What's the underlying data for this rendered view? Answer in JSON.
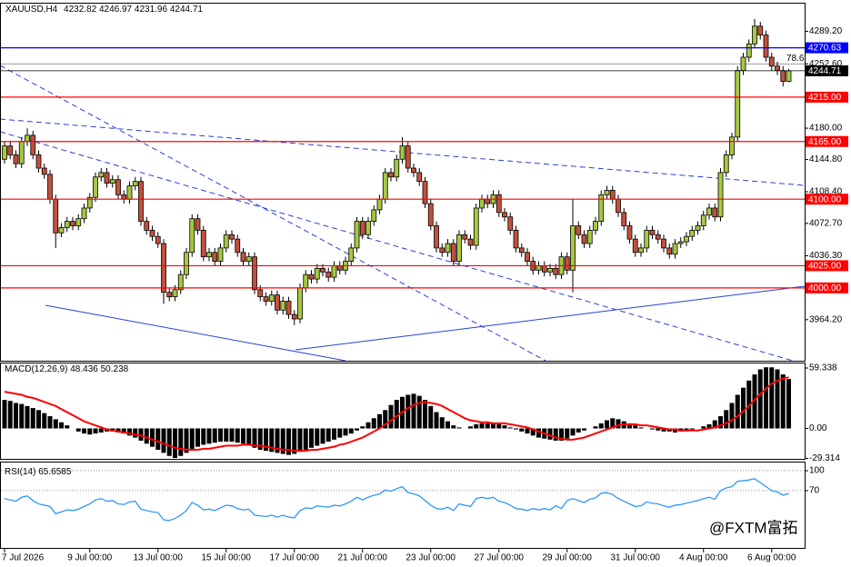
{
  "chart_data": [
    {
      "type": "candlestick",
      "title": "XAUUSD,H4",
      "header_values": [
        4232.82,
        4246.97,
        4231.96,
        4244.71
      ],
      "open": [
        4145,
        4160,
        4150,
        4140,
        4165,
        4172,
        4150,
        4135,
        4128,
        4100,
        4062,
        4068,
        4075,
        4070,
        4078,
        4090,
        4102,
        4125,
        4130,
        4118,
        4122,
        4105,
        4100,
        4115,
        4120,
        4075,
        4065,
        4058,
        4050,
        3995,
        3990,
        3998,
        4015,
        4040,
        4078,
        4065,
        4035,
        4040,
        4030,
        4045,
        4060,
        4055,
        4040,
        4030,
        4035,
        3998,
        3990,
        3985,
        3992,
        3975,
        3985,
        3970,
        3965,
        4000,
        4015,
        4010,
        4022,
        4018,
        4012,
        4025,
        4020,
        4030,
        4045,
        4075,
        4060,
        4075,
        4088,
        4100,
        4130,
        4125,
        4145,
        4160,
        4135,
        4130,
        4120,
        4095,
        4070,
        4045,
        4040,
        4050,
        4030,
        4060,
        4055,
        4048,
        4090,
        4100,
        4095,
        4105,
        4085,
        4080,
        4065,
        4045,
        4040,
        4030,
        4020,
        4025,
        4018,
        4022,
        4015,
        4035,
        4020,
        4070,
        4060,
        4050,
        4065,
        4075,
        4105,
        4110,
        4100,
        4085,
        4070,
        4055,
        4040,
        4045,
        4065,
        4060,
        4055,
        4045,
        4038,
        4050,
        4052,
        4058,
        4065,
        4070,
        4082,
        4090,
        4080,
        4130,
        4150,
        4170,
        4245,
        4260,
        4275,
        4295,
        4285,
        4260,
        4250,
        4245,
        4232.82
      ],
      "high": [
        4165,
        4165,
        4155,
        4170,
        4180,
        4177,
        4155,
        4140,
        4133,
        4105,
        4073,
        4080,
        4080,
        4083,
        4095,
        4107,
        4130,
        4135,
        4135,
        4127,
        4127,
        4110,
        4120,
        4125,
        4125,
        4080,
        4070,
        4063,
        4055,
        4000,
        4003,
        4020,
        4045,
        4083,
        4083,
        4070,
        4045,
        4045,
        4050,
        4065,
        4065,
        4060,
        4045,
        4040,
        4040,
        4003,
        3995,
        3997,
        3997,
        3990,
        3990,
        3975,
        4005,
        4020,
        4020,
        4027,
        4027,
        4023,
        4030,
        4030,
        4035,
        4050,
        4080,
        4080,
        4080,
        4093,
        4105,
        4135,
        4135,
        4150,
        4170,
        4165,
        4140,
        4135,
        4125,
        4100,
        4075,
        4050,
        4055,
        4055,
        4065,
        4065,
        4060,
        4095,
        4105,
        4105,
        4110,
        4110,
        4090,
        4085,
        4070,
        4050,
        4045,
        4035,
        4030,
        4030,
        4027,
        4027,
        4040,
        4040,
        4100,
        4075,
        4065,
        4070,
        4080,
        4110,
        4115,
        4115,
        4105,
        4090,
        4075,
        4060,
        4050,
        4070,
        4070,
        4065,
        4060,
        4050,
        4055,
        4057,
        4063,
        4070,
        4075,
        4087,
        4095,
        4095,
        4135,
        4155,
        4175,
        4250,
        4265,
        4280,
        4303,
        4300,
        4290,
        4265,
        4255,
        4250,
        4246.97
      ],
      "low": [
        4140,
        4145,
        4135,
        4135,
        4160,
        4145,
        4130,
        4123,
        4095,
        4045,
        4057,
        4063,
        4065,
        4065,
        4073,
        4085,
        4097,
        4120,
        4113,
        4113,
        4100,
        4095,
        4095,
        4110,
        4070,
        4060,
        4053,
        4045,
        3982,
        3985,
        3985,
        3993,
        4010,
        4035,
        4060,
        4030,
        4030,
        4025,
        4025,
        4040,
        4050,
        4035,
        4025,
        4025,
        3993,
        3985,
        3980,
        3980,
        3970,
        3970,
        3965,
        3958,
        3960,
        3995,
        4005,
        4005,
        4013,
        4007,
        4007,
        4015,
        4015,
        4025,
        4040,
        4055,
        4055,
        4070,
        4083,
        4095,
        4120,
        4120,
        4140,
        4130,
        4125,
        4115,
        4090,
        4065,
        4040,
        4035,
        4035,
        4025,
        4025,
        4050,
        4043,
        4043,
        4085,
        4090,
        4090,
        4080,
        4075,
        4060,
        4040,
        4035,
        4025,
        4015,
        4015,
        4013,
        4013,
        4010,
        4010,
        4015,
        3995,
        4055,
        4045,
        4045,
        4060,
        4070,
        4100,
        4095,
        4080,
        4065,
        4050,
        4035,
        4035,
        4040,
        4055,
        4050,
        4040,
        4033,
        4033,
        4045,
        4047,
        4053,
        4060,
        4065,
        4077,
        4075,
        4075,
        4125,
        4145,
        4165,
        4240,
        4255,
        4270,
        4280,
        4255,
        4245,
        4240,
        4227,
        4231.96
      ],
      "close": [
        4160,
        4150,
        4140,
        4165,
        4172,
        4150,
        4135,
        4128,
        4100,
        4062,
        4068,
        4075,
        4070,
        4078,
        4090,
        4102,
        4125,
        4130,
        4118,
        4122,
        4105,
        4100,
        4115,
        4120,
        4075,
        4065,
        4058,
        4050,
        3995,
        3990,
        3998,
        4015,
        4040,
        4078,
        4065,
        4035,
        4040,
        4030,
        4045,
        4060,
        4055,
        4040,
        4030,
        4035,
        3998,
        3990,
        3985,
        3992,
        3975,
        3985,
        3970,
        3965,
        4000,
        4015,
        4010,
        4022,
        4018,
        4012,
        4025,
        4020,
        4030,
        4045,
        4075,
        4060,
        4075,
        4088,
        4100,
        4130,
        4125,
        4145,
        4160,
        4135,
        4130,
        4120,
        4095,
        4070,
        4045,
        4040,
        4050,
        4030,
        4060,
        4055,
        4048,
        4090,
        4100,
        4095,
        4105,
        4085,
        4080,
        4065,
        4045,
        4040,
        4030,
        4020,
        4025,
        4018,
        4022,
        4015,
        4035,
        4020,
        4070,
        4060,
        4050,
        4065,
        4075,
        4105,
        4110,
        4100,
        4085,
        4070,
        4055,
        4040,
        4045,
        4065,
        4060,
        4055,
        4045,
        4038,
        4050,
        4052,
        4058,
        4065,
        4070,
        4082,
        4090,
        4080,
        4130,
        4150,
        4170,
        4245,
        4260,
        4275,
        4295,
        4285,
        4260,
        4250,
        4245,
        4232.82,
        4244.71
      ],
      "up_color": "#a6c93f",
      "down_color": "#c4503c",
      "ylim": [
        3917.9,
        4320.4
      ],
      "yticks": [
        {
          "value": 4289.2,
          "label": "4289.20"
        },
        {
          "value": 4252.6,
          "label": "4252.60"
        },
        {
          "value": 4180,
          "label": "4180.00"
        },
        {
          "value": 4144.8,
          "label": "4144.80"
        },
        {
          "value": 4108.4,
          "label": "4108.40"
        },
        {
          "value": 4072.7,
          "label": "4072.70"
        },
        {
          "value": 4036.3,
          "label": "4036.30"
        },
        {
          "value": 3964.2,
          "label": "3964.20"
        }
      ],
      "levels": [
        {
          "value": 4270.63,
          "label": "4270.63",
          "color": "#0000ff"
        },
        {
          "value": 4215,
          "label": "4215.00",
          "color": "#ff0000"
        },
        {
          "value": 4165,
          "label": "4165.00",
          "color": "#ff0000"
        },
        {
          "value": 4100,
          "label": "4100.00",
          "color": "#ff0000"
        },
        {
          "value": 4025,
          "label": "4025.00",
          "color": "#ff0000"
        },
        {
          "value": 4000,
          "label": "4000.00",
          "color": "#ff0000"
        }
      ],
      "fib": {
        "level": 78.6,
        "price": 4252.4
      },
      "xticks": [
        {
          "value": 0,
          "label": "7 Jul 2026"
        },
        {
          "value": 15,
          "label": "9 Jul 00:00"
        },
        {
          "value": 27,
          "label": "13 Jul 00:00"
        },
        {
          "value": 39,
          "label": "15 Jul 00:00"
        },
        {
          "value": 51,
          "label": "17 Jul 00:00"
        },
        {
          "value": 63,
          "label": "21 Jul 00:00"
        },
        {
          "value": 75,
          "label": "23 Jul 00:00"
        },
        {
          "value": 87,
          "label": "27 Jul 00:00"
        },
        {
          "value": 99,
          "label": "29 Jul 00:00"
        },
        {
          "value": 111,
          "label": "31 Jul 00:00"
        },
        {
          "value": 123,
          "label": "4 Aug 00:00"
        },
        {
          "value": 135,
          "label": "6 Aug 00:00"
        }
      ]
    },
    {
      "type": "macd",
      "title": "MACD(12,26,9)",
      "series": [
        {
          "color": "#000000",
          "values": [
            28,
            27,
            25,
            24,
            22,
            20,
            18,
            15,
            12,
            9,
            6,
            3,
            0,
            -3,
            -5,
            -6,
            -5,
            -4,
            -3,
            -3,
            -4,
            -5,
            -7,
            -9,
            -12,
            -15,
            -18,
            -21,
            -24,
            -27,
            -29,
            -27,
            -24,
            -20,
            -18,
            -16,
            -15,
            -14,
            -13,
            -13,
            -13,
            -14,
            -15,
            -17,
            -19,
            -21,
            -22,
            -23,
            -24,
            -25,
            -26,
            -25,
            -23,
            -21,
            -19,
            -17,
            -15,
            -13,
            -11,
            -9,
            -7,
            -5,
            -2,
            2,
            6,
            10,
            14,
            18,
            23,
            28,
            31,
            33,
            34,
            32,
            28,
            22,
            16,
            11,
            7,
            3,
            1,
            0,
            2,
            4,
            5,
            5,
            5,
            4,
            3,
            1,
            -1,
            -3,
            -5,
            -7,
            -9,
            -10,
            -11,
            -12,
            -12,
            -10,
            -7,
            -4,
            -2,
            0,
            2,
            5,
            8,
            10,
            9,
            7,
            5,
            3,
            1,
            0,
            -1,
            -2,
            -3,
            -3,
            -4,
            -3,
            -2,
            -1,
            0,
            2,
            4,
            8,
            12,
            18,
            25,
            33,
            40,
            47,
            53,
            58,
            60,
            60,
            58,
            53,
            48.436
          ]
        },
        {
          "color": "#ff0000",
          "values": [
            36,
            35,
            34,
            33,
            31,
            30,
            28,
            26,
            24,
            22,
            19,
            16,
            13,
            10,
            7,
            5,
            3,
            1,
            -1,
            -2,
            -3,
            -4,
            -5,
            -6,
            -7,
            -9,
            -11,
            -13,
            -15,
            -17,
            -19,
            -20,
            -21,
            -21,
            -21,
            -20,
            -20,
            -19,
            -18,
            -17,
            -17,
            -17,
            -16,
            -16,
            -17,
            -17,
            -18,
            -19,
            -20,
            -21,
            -21,
            -22,
            -22,
            -22,
            -21,
            -21,
            -20,
            -19,
            -18,
            -16,
            -15,
            -13,
            -11,
            -9,
            -6,
            -3,
            0,
            4,
            8,
            12,
            16,
            20,
            23,
            25,
            26,
            25,
            24,
            22,
            19,
            16,
            13,
            10,
            8,
            7,
            6,
            6,
            5,
            5,
            5,
            4,
            3,
            2,
            1,
            -1,
            -3,
            -5,
            -7,
            -9,
            -10,
            -11,
            -11,
            -10,
            -9,
            -7,
            -5,
            -3,
            -1,
            1,
            3,
            4,
            4,
            4,
            3,
            3,
            2,
            1,
            0,
            -1,
            -1,
            -2,
            -2,
            -2,
            -2,
            -1,
            0,
            1,
            3,
            5,
            8,
            12,
            17,
            22,
            28,
            34,
            39,
            44,
            47,
            49,
            50.238
          ]
        }
      ],
      "ylim": [
        -29.9,
        62.9
      ],
      "yticks": [
        59.338,
        {
          "value": 0,
          "label": "0.00"
        },
        -29.314
      ]
    },
    {
      "type": "line",
      "title": "RSI(14)",
      "color": "#1e90ff",
      "values": [
        58,
        56,
        54,
        60,
        62,
        55,
        50,
        48,
        46,
        35,
        38,
        41,
        40,
        42,
        46,
        50,
        56,
        58,
        54,
        55,
        50,
        49,
        53,
        54,
        42,
        40,
        38,
        37,
        26,
        25,
        28,
        33,
        40,
        52,
        48,
        41,
        42,
        40,
        44,
        48,
        47,
        43,
        41,
        42,
        33,
        32,
        31,
        33,
        30,
        33,
        30,
        29,
        40,
        44,
        43,
        47,
        46,
        45,
        48,
        47,
        50,
        54,
        60,
        56,
        60,
        63,
        65,
        71,
        69,
        73,
        76,
        67,
        65,
        62,
        55,
        48,
        43,
        42,
        45,
        40,
        50,
        48,
        46,
        58,
        60,
        58,
        60,
        54,
        52,
        48,
        43,
        42,
        40,
        43,
        41,
        43,
        41,
        47,
        43,
        55,
        58,
        55,
        52,
        57,
        59,
        66,
        67,
        64,
        58,
        54,
        50,
        46,
        47,
        53,
        51,
        50,
        47,
        45,
        48,
        49,
        51,
        53,
        55,
        58,
        60,
        57,
        70,
        74,
        76,
        84,
        85,
        86,
        88,
        82,
        76,
        70,
        68,
        63,
        65.6585
      ],
      "ylim": [
        -15,
        111
      ],
      "yticks": [
        100,
        70
      ]
    }
  ],
  "watermark": "@FXTM富拓"
}
